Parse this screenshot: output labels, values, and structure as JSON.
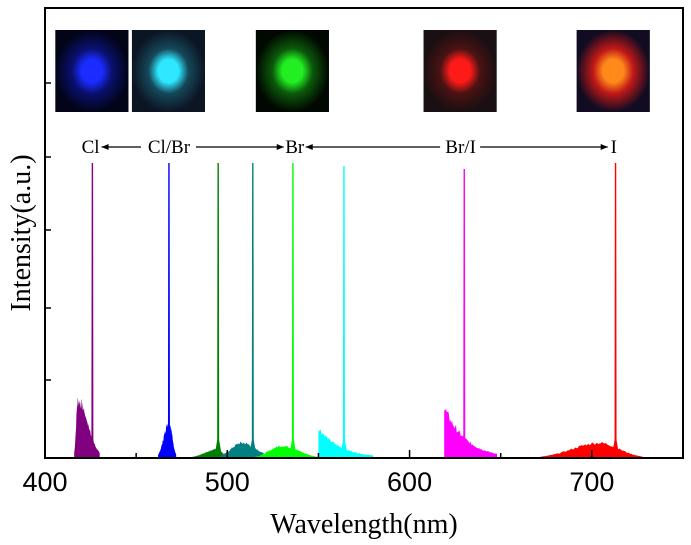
{
  "chart_data": {
    "type": "area",
    "title": "",
    "xlabel": "Wavelength(nm)",
    "ylabel": "Intensity(a.u.)",
    "xlim": [
      400,
      750
    ],
    "ylim": [
      0,
      1
    ],
    "xticks": [
      400,
      500,
      600,
      700
    ],
    "xminor_ticks": [
      450,
      550,
      650
    ],
    "yticks_unlabeled": [
      0.25,
      0.5,
      0.75,
      1.0
    ],
    "grid": false,
    "legend": "none",
    "series": [
      {
        "name": "Cl",
        "color": "#800080",
        "laser_peak_nm": 426,
        "peak_intensity": 0.98,
        "broad_band": {
          "start": 416,
          "center": 418,
          "end": 430,
          "height": 0.19
        }
      },
      {
        "name": "Cl/Br (blue)",
        "color": "#0000ff",
        "laser_peak_nm": 468,
        "peak_intensity": 0.98,
        "broad_band": {
          "start": 462,
          "center": 468,
          "end": 472,
          "height": 0.12
        }
      },
      {
        "name": "Cl/Br (green)",
        "color": "#008000",
        "laser_peak_nm": 495,
        "peak_intensity": 0.98,
        "broad_band": {
          "start": 480,
          "center": 495,
          "end": 500,
          "height": 0.03
        }
      },
      {
        "name": "Cl/Br (teal)",
        "color": "#008080",
        "laser_peak_nm": 514,
        "peak_intensity": 0.98,
        "broad_band": {
          "start": 495,
          "center": 508,
          "end": 525,
          "height": 0.05
        }
      },
      {
        "name": "Br",
        "color": "#00ff00",
        "laser_peak_nm": 536,
        "peak_intensity": 0.98,
        "broad_band": {
          "start": 515,
          "center": 530,
          "end": 550,
          "height": 0.04
        }
      },
      {
        "name": "Br/I (cyan)",
        "color": "#00ffff",
        "laser_peak_nm": 564,
        "peak_intensity": 0.97,
        "broad_band": {
          "start": 550,
          "center": 550,
          "end": 580,
          "height": 0.1
        }
      },
      {
        "name": "Br/I (magenta)",
        "color": "#ff00ff",
        "laser_peak_nm": 630,
        "peak_intensity": 0.96,
        "broad_band": {
          "start": 619,
          "center": 619,
          "end": 648,
          "height": 0.17
        }
      },
      {
        "name": "I",
        "color": "#ff0000",
        "laser_peak_nm": 713,
        "peak_intensity": 0.98,
        "broad_band": {
          "start": 672,
          "center": 704,
          "end": 728,
          "height": 0.05
        }
      }
    ],
    "annotations": {
      "labels": [
        {
          "text": "Cl",
          "x_nm": 425
        },
        {
          "text": "Cl/Br",
          "x_nm": 468
        },
        {
          "text": "Br",
          "x_nm": 537
        },
        {
          "text": "Br/I",
          "x_nm": 628
        },
        {
          "text": "I",
          "x_nm": 712
        }
      ],
      "insets": [
        {
          "name": "blue-spot",
          "x_nm": 426,
          "core": "#1a2cff",
          "halo": "#0a1070",
          "bg": "#020418"
        },
        {
          "name": "cyan-spot",
          "x_nm": 468,
          "core": "#2ee8ff",
          "halo": "#15485a",
          "bg": "#0c1524"
        },
        {
          "name": "green-spot",
          "x_nm": 536,
          "core": "#22ee22",
          "halo": "#0b5a0b",
          "bg": "#010801"
        },
        {
          "name": "red-spot",
          "x_nm": 628,
          "core": "#ff1a1a",
          "halo": "#4a1212",
          "bg": "#1a0f12"
        },
        {
          "name": "orange-red-spot",
          "x_nm": 712,
          "core": "#ff8a1a",
          "halo": "#c01818",
          "bg": "#120c22"
        }
      ]
    }
  }
}
